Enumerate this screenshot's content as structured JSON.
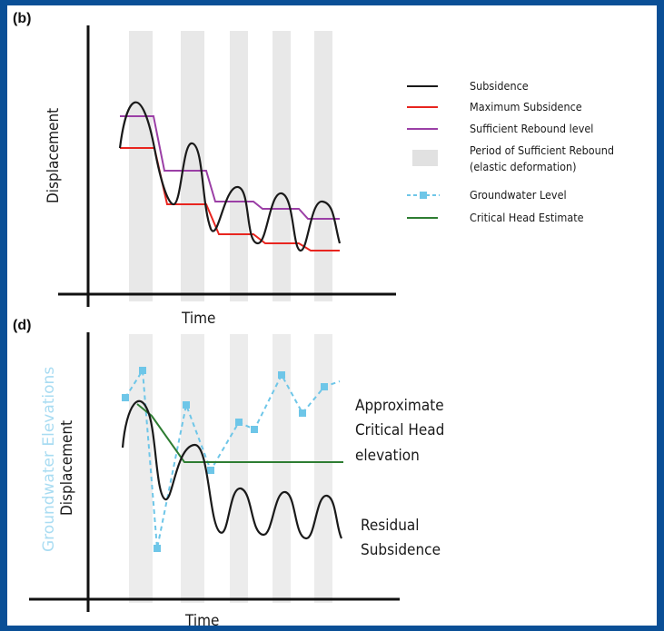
{
  "colors": {
    "background": "#0a4f96",
    "subsidence": "#1a1a1a",
    "maximum_subsidence": "#e8251f",
    "sufficient_rebound": "#9b3fa6",
    "rebound_period": "#d9d9d9",
    "groundwater": "#6ec6e8",
    "critical_head": "#2e7d32"
  },
  "panel_b": {
    "label": "(b)",
    "x_label": "Time",
    "y_label": "Displacement",
    "legend": [
      {
        "text": "Subsidence",
        "icon": "black-line"
      },
      {
        "text": "Maximum Subsidence",
        "icon": "red-line"
      },
      {
        "text": "Sufficient Rebound level",
        "icon": "purple-line"
      },
      {
        "text": "Period of Sufficient Rebound",
        "icon": "grey-band"
      },
      {
        "text": "(elastic deformation)",
        "icon": ""
      },
      {
        "text": "Groundwater Level",
        "icon": "dashed-blue-line-with-markers"
      },
      {
        "text": "Critical Head Estimate",
        "icon": "green-line"
      }
    ]
  },
  "panel_d": {
    "label": "(d)",
    "x_label": "Time",
    "y_label": "Displacement",
    "y_label_secondary": "Groundwater Elevations",
    "annotation_critical": [
      "Approximate",
      "Critical Head",
      "elevation"
    ],
    "annotation_residual": [
      "Residual",
      "Subsidence"
    ]
  }
}
